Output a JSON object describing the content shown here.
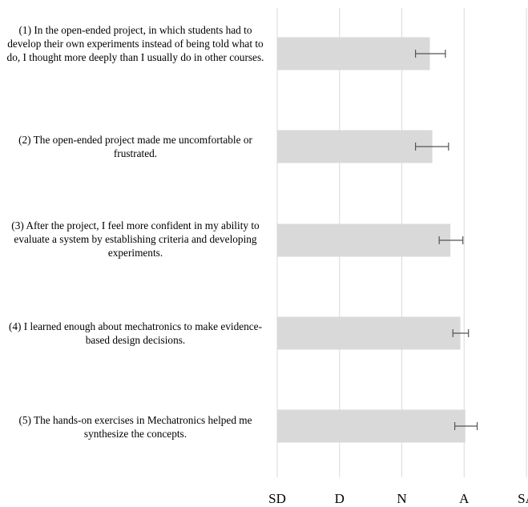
{
  "chart_data": {
    "type": "bar",
    "orientation": "horizontal",
    "title": "",
    "xlabel": "",
    "ylabel": "",
    "x_tick_labels": [
      "SD",
      "D",
      "N",
      "A",
      "SA"
    ],
    "xlim": [
      1,
      5
    ],
    "grid": "vertical",
    "bar_color": "#d9d9d9",
    "categories": [
      "(1) In the open-ended project, in which students had to develop their own experiments instead of being told what to do, I thought more deeply than I usually do in other courses.",
      "(2) The open-ended project made me uncomfortable or frustrated.",
      "(3) After the project, I feel more confident in my ability to evaluate a system by establishing criteria and developing experiments.",
      "(4) I learned enough about mechatronics to make evidence-based design decisions.",
      "(5) The hands-on exercises in Mechatronics helped me synthesize the concepts."
    ],
    "values": [
      3.45,
      3.49,
      3.78,
      3.94,
      4.02
    ],
    "error_low": [
      3.22,
      3.22,
      3.6,
      3.82,
      3.85
    ],
    "error_high": [
      3.7,
      3.75,
      3.98,
      4.07,
      4.21
    ]
  }
}
